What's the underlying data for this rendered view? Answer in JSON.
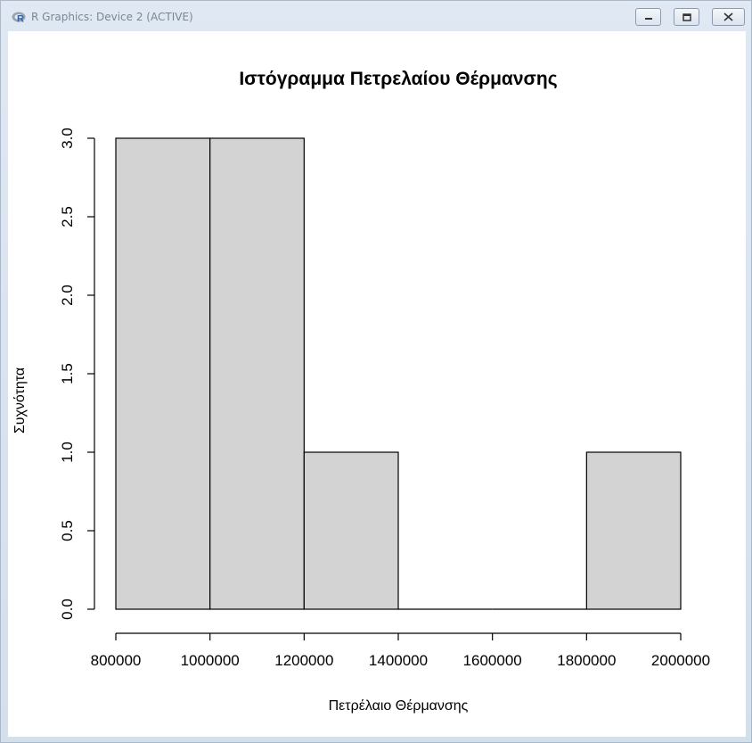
{
  "window": {
    "title": "R Graphics: Device 2 (ACTIVE)",
    "icons": {
      "app": "r-logo-icon",
      "minimize": "minimize-icon",
      "maximize": "maximize-icon",
      "close": "close-icon"
    }
  },
  "chart_data": {
    "type": "bar",
    "subtype": "histogram",
    "title": "Ιστόγραμμα Πετρελαίου Θέρμανσης",
    "xlabel": "Πετρέλαιο Θέρμανσης",
    "ylabel": "Συχνότητα",
    "bins": [
      {
        "start": 800000,
        "end": 1000000,
        "count": 3
      },
      {
        "start": 1000000,
        "end": 1200000,
        "count": 3
      },
      {
        "start": 1200000,
        "end": 1400000,
        "count": 1
      },
      {
        "start": 1400000,
        "end": 1600000,
        "count": 0
      },
      {
        "start": 1600000,
        "end": 1800000,
        "count": 0
      },
      {
        "start": 1800000,
        "end": 2000000,
        "count": 1
      }
    ],
    "xlim": [
      800000,
      2000000
    ],
    "ylim": [
      0,
      3
    ],
    "xticks": [
      "800000",
      "1000000",
      "1200000",
      "1400000",
      "1600000",
      "1800000",
      "2000000"
    ],
    "yticks": [
      "0.0",
      "0.5",
      "1.0",
      "1.5",
      "2.0",
      "2.5",
      "3.0"
    ],
    "bar_color": "#d3d3d3",
    "border_color": "#000000",
    "grid": false
  }
}
